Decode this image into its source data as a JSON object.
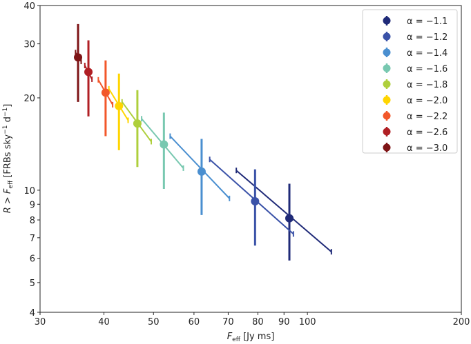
{
  "chart_data": {
    "type": "scatter",
    "title": "",
    "xlabel": {
      "main": "F",
      "sub": "eff",
      "rest": " [Jy ms]"
    },
    "ylabel": {
      "pre": "R",
      "mid": " > ",
      "main": "F",
      "sub": "eff",
      "rest1": " [FRBs sky",
      "sup1": "−1",
      "rest2": " d",
      "sup2": "−1",
      "rest3": "]"
    },
    "xscale": "log",
    "yscale": "log",
    "xlim": [
      30,
      200
    ],
    "ylim": [
      4,
      40
    ],
    "xticks": [
      30,
      40,
      50,
      60,
      70,
      80,
      90,
      100,
      200
    ],
    "yticks": [
      4,
      5,
      6,
      7,
      8,
      9,
      10,
      20,
      30,
      40
    ],
    "grid": false,
    "legend_placement": "top-right",
    "series": [
      {
        "name": "α = −1.1",
        "color": "#1f2a78",
        "x": 92.2,
        "y": 8.1,
        "yerr": [
          5.9,
          10.5
        ],
        "xerr_line": [
          [
            72.6,
            11.6
          ],
          [
            111.4,
            6.3
          ]
        ]
      },
      {
        "name": "α = −1.2",
        "color": "#3a52a8",
        "x": 79.0,
        "y": 9.2,
        "yerr": [
          6.6,
          11.7
        ],
        "xerr_line": [
          [
            64.4,
            12.6
          ],
          [
            93.9,
            7.2
          ]
        ]
      },
      {
        "name": "α = −1.4",
        "color": "#4a8fd0",
        "x": 62.1,
        "y": 11.5,
        "yerr": [
          8.3,
          14.7
        ],
        "xerr_line": [
          [
            53.9,
            15.0
          ],
          [
            70.4,
            9.4
          ]
        ]
      },
      {
        "name": "α = −1.6",
        "color": "#78c8b0",
        "x": 52.4,
        "y": 14.1,
        "yerr": [
          10.1,
          17.9
        ],
        "xerr_line": [
          [
            47.4,
            17.1
          ],
          [
            57.2,
            11.8
          ]
        ]
      },
      {
        "name": "α = −1.8",
        "color": "#aecf3c",
        "x": 46.5,
        "y": 16.5,
        "yerr": [
          11.9,
          21.2
        ],
        "xerr_line": [
          [
            43.4,
            19.4
          ],
          [
            49.5,
            14.4
          ]
        ]
      },
      {
        "name": "α = −2.0",
        "color": "#ffd500",
        "x": 42.8,
        "y": 18.8,
        "yerr": [
          13.5,
          24.0
        ],
        "xerr_line": [
          [
            40.9,
            21.4
          ],
          [
            44.6,
            16.9
          ]
        ]
      },
      {
        "name": "α = −2.2",
        "color": "#f2572a",
        "x": 40.3,
        "y": 20.8,
        "yerr": [
          15.0,
          26.5
        ],
        "xerr_line": [
          [
            39.0,
            22.9
          ],
          [
            41.6,
            19.0
          ]
        ]
      },
      {
        "name": "α = −2.6",
        "color": "#b01f24",
        "x": 37.3,
        "y": 24.3,
        "yerr": [
          17.4,
          30.8
        ],
        "xerr_line": [
          [
            36.7,
            25.5
          ],
          [
            37.9,
            23.0
          ]
        ]
      },
      {
        "name": "α = −3.0",
        "color": "#7e1416",
        "x": 35.6,
        "y": 27.1,
        "yerr": [
          19.4,
          34.8
        ],
        "xerr_line": [
          [
            35.2,
            28.1
          ],
          [
            36.1,
            26.3
          ]
        ]
      }
    ]
  }
}
